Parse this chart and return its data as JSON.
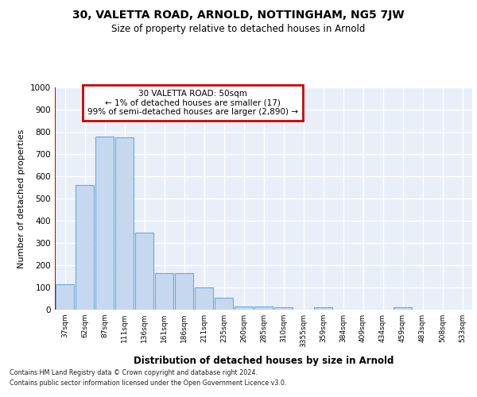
{
  "title1": "30, VALETTA ROAD, ARNOLD, NOTTINGHAM, NG5 7JW",
  "title2": "Size of property relative to detached houses in Arnold",
  "xlabel": "Distribution of detached houses by size in Arnold",
  "ylabel": "Number of detached properties",
  "categories": [
    "37sqm",
    "62sqm",
    "87sqm",
    "111sqm",
    "136sqm",
    "161sqm",
    "186sqm",
    "211sqm",
    "235sqm",
    "260sqm",
    "285sqm",
    "310sqm",
    "3355sqm",
    "359sqm",
    "384sqm",
    "409sqm",
    "434sqm",
    "459sqm",
    "483sqm",
    "508sqm",
    "533sqm"
  ],
  "values": [
    113,
    560,
    780,
    775,
    345,
    165,
    165,
    100,
    53,
    15,
    15,
    12,
    0,
    10,
    0,
    0,
    0,
    10,
    0,
    0,
    0
  ],
  "bar_color": "#c5d8f0",
  "bar_edge_color": "#6baad4",
  "highlight_color": "#cc0000",
  "annotation_line1": "30 VALETTA ROAD: 50sqm",
  "annotation_line2": "← 1% of detached houses are smaller (17)",
  "annotation_line3": "99% of semi-detached houses are larger (2,890) →",
  "annotation_box_facecolor": "#ffffff",
  "annotation_box_edgecolor": "#cc0000",
  "ylim": [
    0,
    1000
  ],
  "yticks": [
    0,
    100,
    200,
    300,
    400,
    500,
    600,
    700,
    800,
    900,
    1000
  ],
  "footer1": "Contains HM Land Registry data © Crown copyright and database right 2024.",
  "footer2": "Contains public sector information licensed under the Open Government Licence v3.0.",
  "fig_bg_color": "#ffffff",
  "ax_bg_color": "#e8eff8",
  "grid_color": "#ffffff"
}
